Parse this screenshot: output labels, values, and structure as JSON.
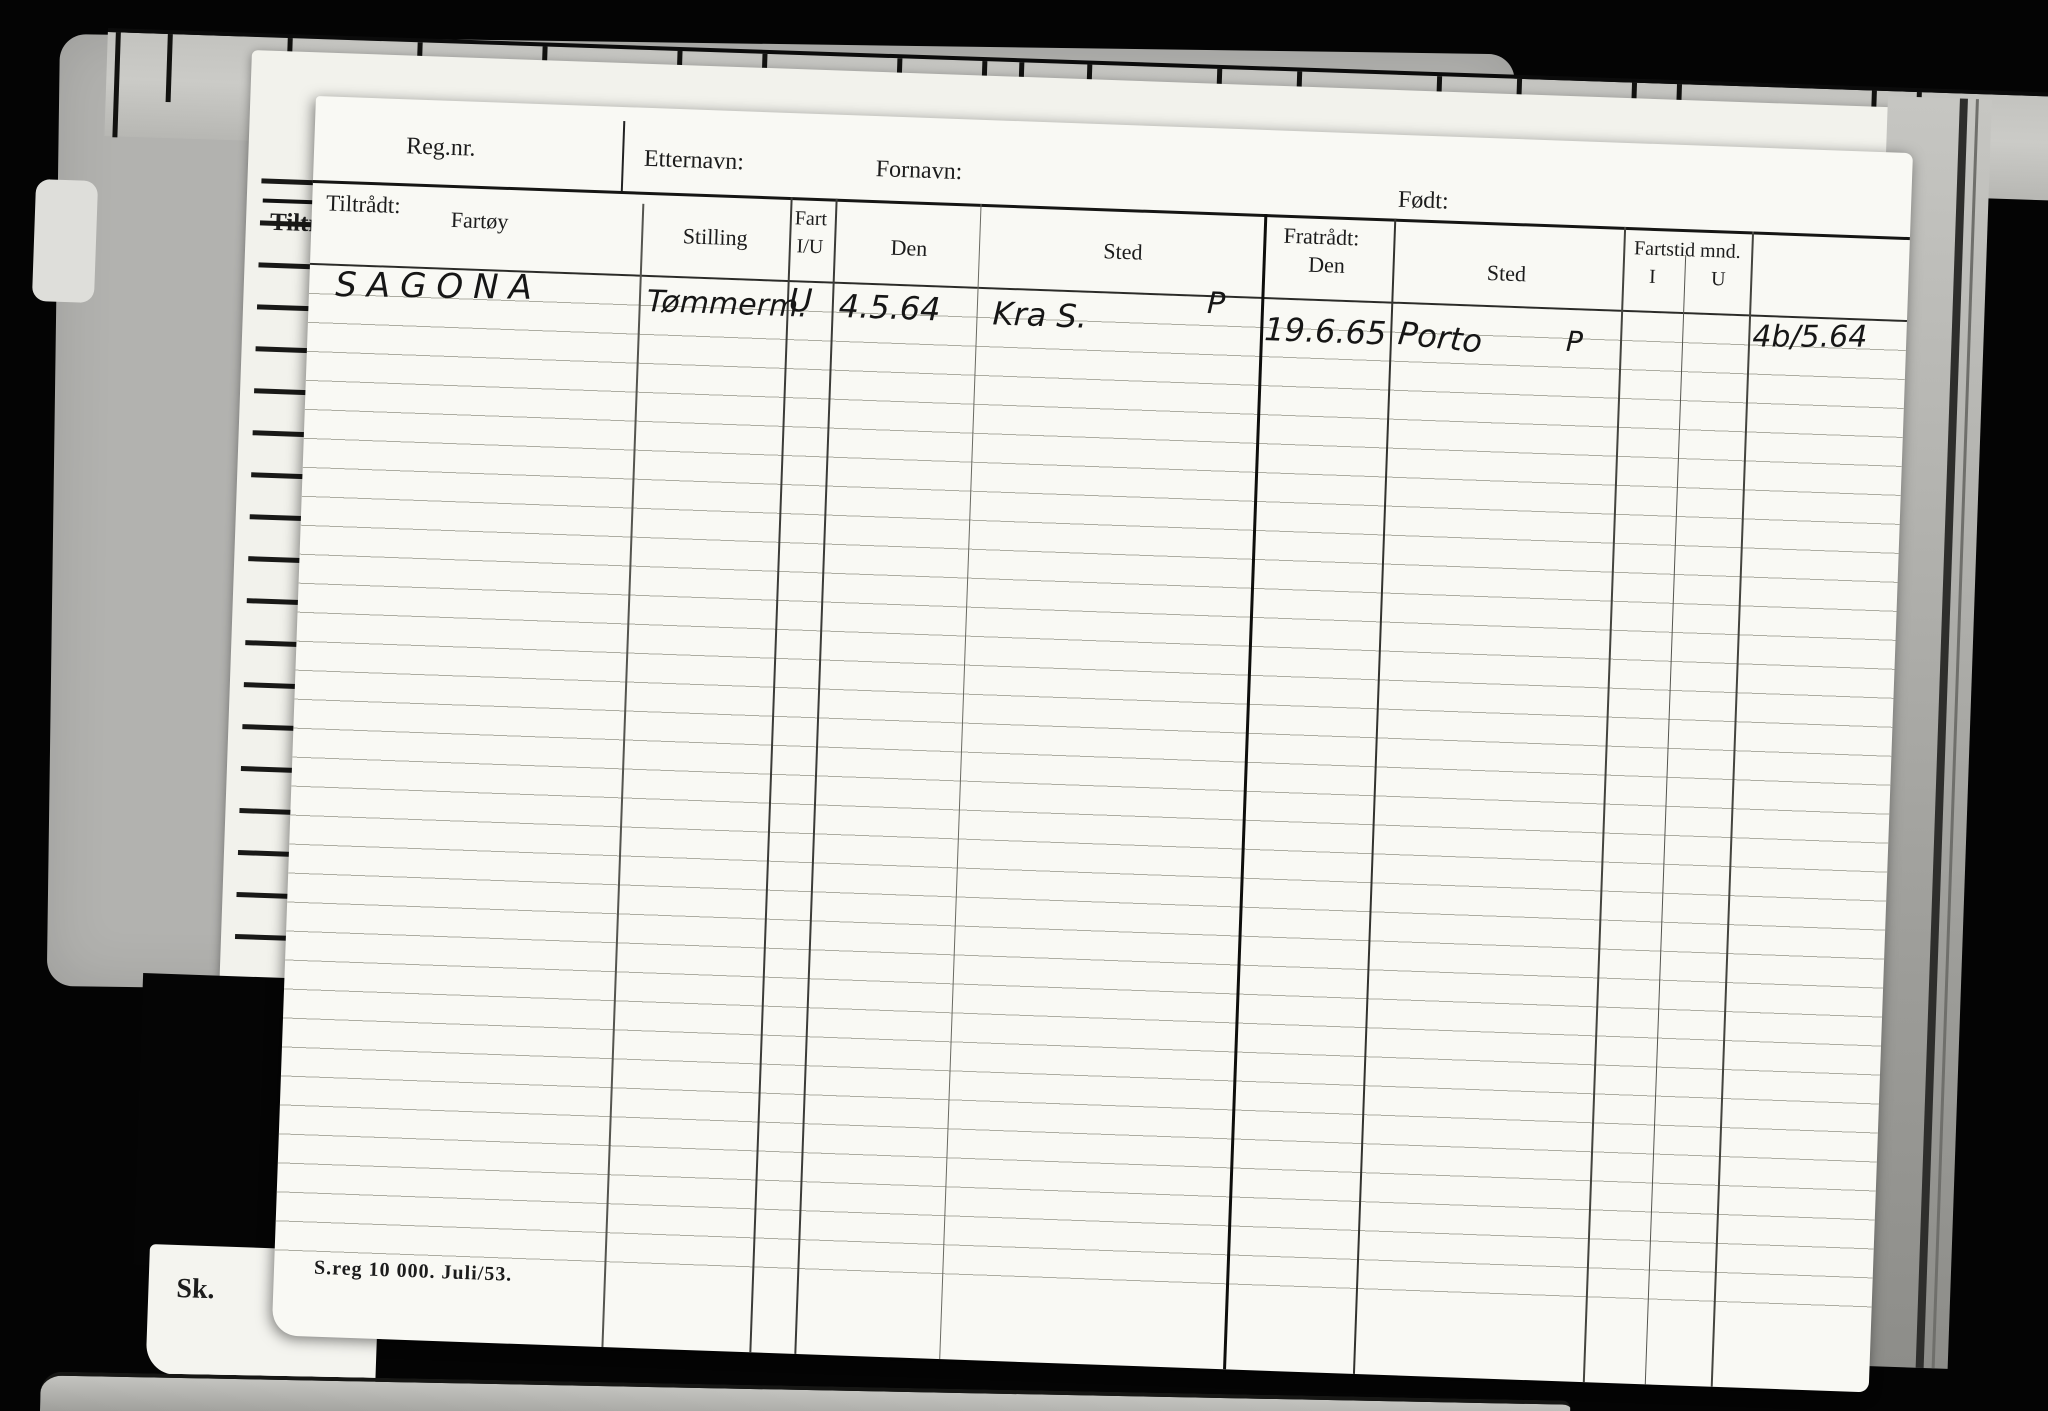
{
  "document": {
    "top_fields": {
      "reg_nr": "Reg.nr.",
      "etternavn": "Etternavn:",
      "fornavn": "Fornavn:",
      "fodt": "Født:"
    },
    "tiltradt_label": "Tiltrådt:",
    "table": {
      "columns": {
        "fartoy": "Fartøy",
        "stilling": "Stilling",
        "fart_line1": "Fart",
        "fart_line2": "I/U",
        "den": "Den",
        "sted": "Sted",
        "fratradt": "Fratrådt:",
        "fratradt_den": "Den",
        "fratradt_sted": "Sted",
        "fartstid": "Fartstid mnd.",
        "fartstid_i": "I",
        "fartstid_u": "U"
      }
    },
    "record": {
      "fartoy": "SAGONA",
      "stilling": "Tømmerm.",
      "fart": "U",
      "den": "4.5.64",
      "sted": "Kra S.",
      "sted_mark": "P",
      "fratradt_den": "19.6.65",
      "fratradt_sted": "Porto",
      "fratradt_sted_mark": "P",
      "fartstid_note": "4b/5.64"
    },
    "footer_print": "S.reg  10 000.  Juli/53."
  },
  "background_card": {
    "tiltradt_partial": "Tiltrå",
    "corner_partial": "Sk."
  },
  "colors": {
    "background": "#040404",
    "paper": "#f9f9f4",
    "cardboard": "#b2b2af",
    "print_ink": "#1c1c1c",
    "handwriting_ink": "#161616"
  }
}
